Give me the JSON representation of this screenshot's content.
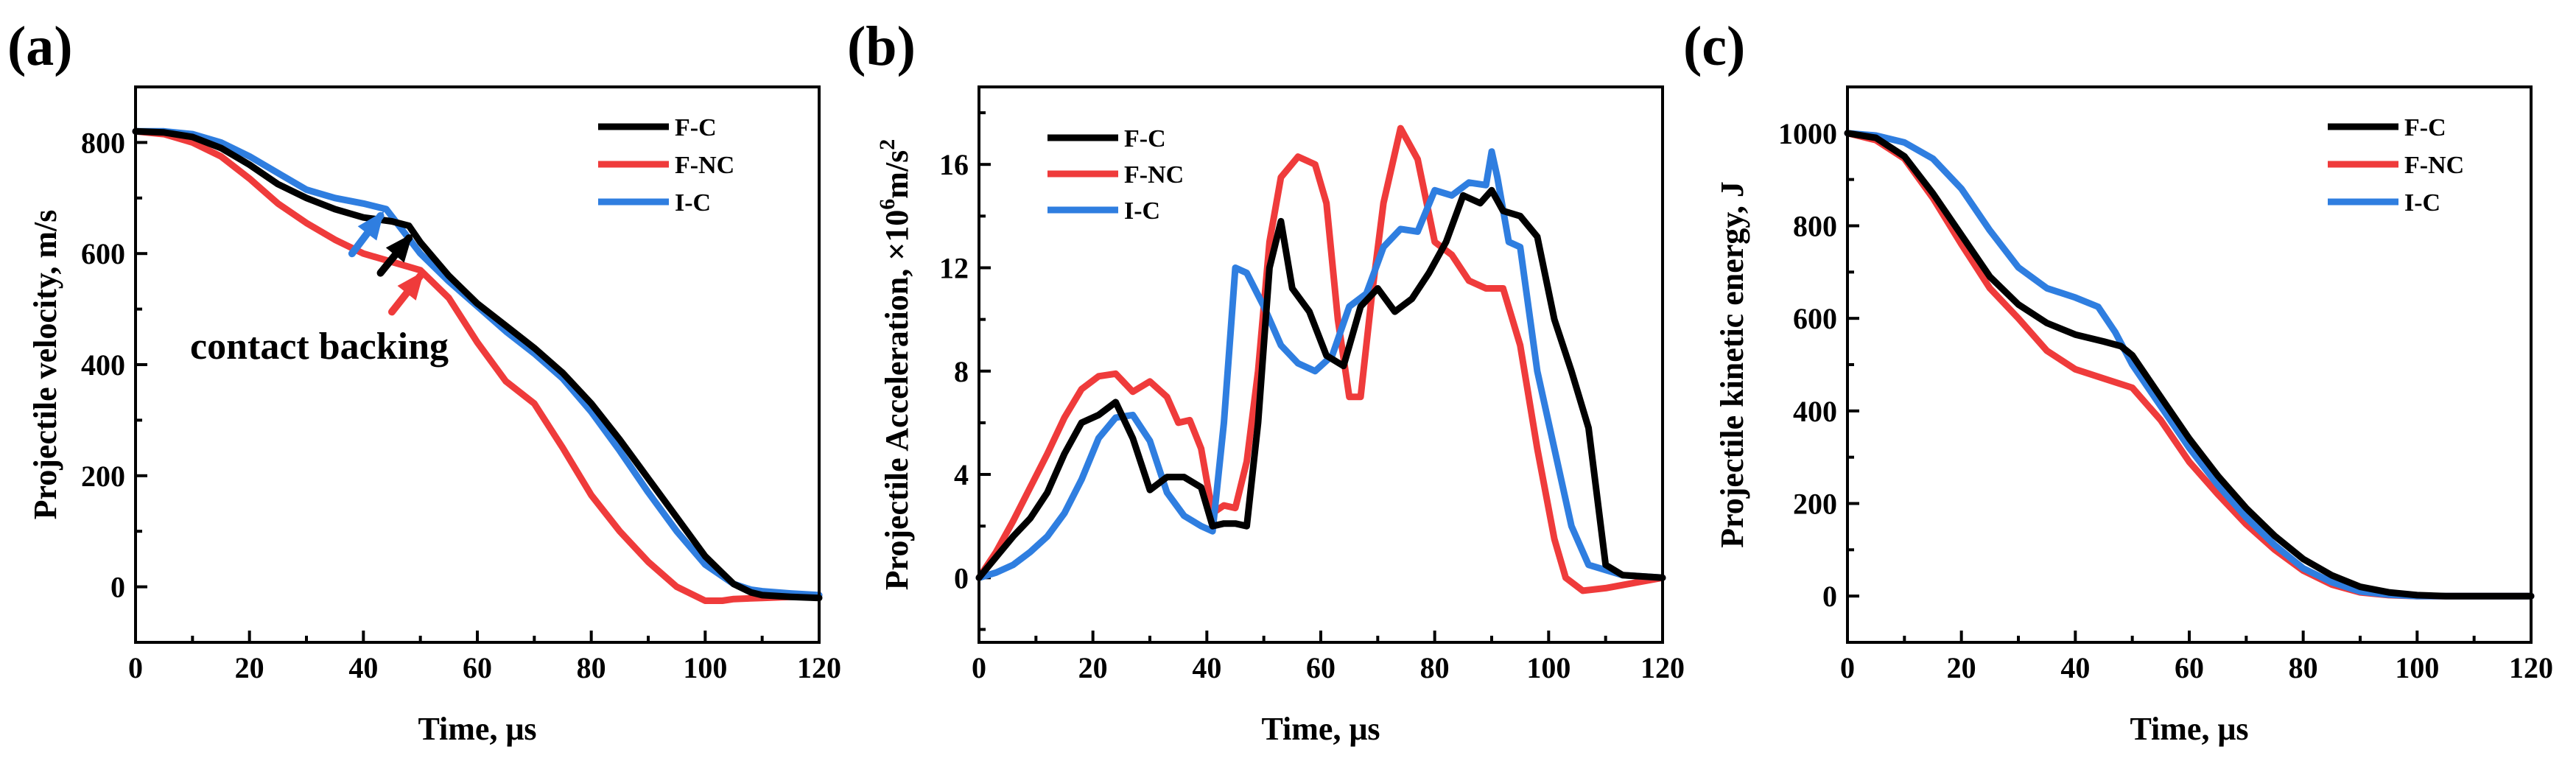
{
  "colors": {
    "F-C": "#000000",
    "F-NC": "#ef3b3b",
    "I-C": "#2f7ee0"
  },
  "chart_data": [
    {
      "id": "a",
      "type": "line",
      "panel_label": "(a)",
      "xlabel": "Time, μs",
      "ylabel": "Projectile velocity, m/s",
      "xlim": [
        0,
        120
      ],
      "ylim": [
        -100,
        900
      ],
      "xticks": [
        0,
        20,
        40,
        60,
        80,
        100,
        120
      ],
      "yticks": [
        0,
        200,
        400,
        600,
        800
      ],
      "legend": [
        "F-C",
        "F-NC",
        "I-C"
      ],
      "annotation": "contact backing",
      "arrows": [
        {
          "series": "I-C",
          "from": [
            38,
            600
          ],
          "to": [
            43,
            668
          ]
        },
        {
          "series": "F-C",
          "from": [
            43,
            565
          ],
          "to": [
            48,
            628
          ]
        },
        {
          "series": "F-NC",
          "from": [
            45,
            495
          ],
          "to": [
            50,
            560
          ]
        }
      ],
      "series": [
        {
          "name": "F-C",
          "x": [
            0,
            5,
            10,
            15,
            20,
            25,
            30,
            35,
            40,
            45,
            48,
            50,
            55,
            60,
            65,
            70,
            75,
            80,
            85,
            90,
            95,
            100,
            103,
            105,
            108,
            110,
            115,
            120
          ],
          "y": [
            820,
            818,
            810,
            790,
            760,
            725,
            700,
            680,
            665,
            658,
            650,
            620,
            560,
            510,
            470,
            430,
            385,
            330,
            265,
            195,
            125,
            55,
            25,
            5,
            -10,
            -15,
            -18,
            -20
          ]
        },
        {
          "name": "F-NC",
          "x": [
            0,
            5,
            10,
            15,
            20,
            25,
            30,
            35,
            40,
            45,
            50,
            55,
            60,
            65,
            70,
            75,
            80,
            85,
            90,
            95,
            100,
            103,
            105,
            110,
            115,
            120
          ],
          "y": [
            820,
            815,
            800,
            775,
            735,
            690,
            655,
            625,
            600,
            585,
            570,
            520,
            440,
            370,
            330,
            250,
            165,
            100,
            45,
            0,
            -25,
            -25,
            -22,
            -20,
            -18,
            -15
          ]
        },
        {
          "name": "I-C",
          "x": [
            0,
            5,
            10,
            15,
            20,
            25,
            30,
            35,
            40,
            44,
            47,
            50,
            55,
            60,
            65,
            70,
            75,
            80,
            85,
            90,
            95,
            100,
            105,
            108,
            110,
            115,
            120
          ],
          "y": [
            820,
            820,
            815,
            800,
            775,
            745,
            715,
            700,
            690,
            680,
            640,
            600,
            550,
            505,
            460,
            420,
            375,
            315,
            245,
            170,
            100,
            40,
            5,
            -5,
            -8,
            -12,
            -15
          ]
        }
      ]
    },
    {
      "id": "b",
      "type": "line",
      "panel_label": "(b)",
      "xlabel": "Time, μs",
      "ylabel_prefix": "Projectile Acceleration, ×10",
      "ylabel_exp": "6",
      "ylabel_unit": "m/s",
      "ylabel_unit_exp": "2",
      "xlim": [
        0,
        120
      ],
      "ylim": [
        -2.5,
        19
      ],
      "xticks": [
        0,
        20,
        40,
        60,
        80,
        100,
        120
      ],
      "yticks": [
        0,
        4,
        8,
        12,
        16
      ],
      "legend": [
        "F-C",
        "F-NC",
        "I-C"
      ],
      "series": [
        {
          "name": "F-C",
          "x": [
            0,
            3,
            6,
            9,
            12,
            15,
            18,
            21,
            24,
            27,
            30,
            33,
            36,
            39,
            41,
            43,
            45,
            47,
            49,
            51,
            53,
            55,
            58,
            61,
            64,
            67,
            70,
            73,
            76,
            79,
            82,
            85,
            88,
            90,
            92,
            95,
            98,
            101,
            104,
            107,
            110,
            113,
            120
          ],
          "y": [
            0,
            0.8,
            1.6,
            2.3,
            3.3,
            4.8,
            6.0,
            6.3,
            6.8,
            5.4,
            3.4,
            3.9,
            3.9,
            3.5,
            2.0,
            2.1,
            2.1,
            2.0,
            6.0,
            12.0,
            13.8,
            11.2,
            10.3,
            8.6,
            8.2,
            10.5,
            11.2,
            10.3,
            10.8,
            11.8,
            13.0,
            14.8,
            14.5,
            15.0,
            14.2,
            14.0,
            13.2,
            10.0,
            8.0,
            5.8,
            0.5,
            0.1,
            0
          ]
        },
        {
          "name": "F-NC",
          "x": [
            0,
            3,
            6,
            9,
            12,
            15,
            18,
            21,
            24,
            27,
            30,
            33,
            35,
            37,
            39,
            41,
            43,
            45,
            47,
            49,
            51,
            53,
            56,
            59,
            61,
            63,
            65,
            67,
            69,
            71,
            74,
            77,
            80,
            83,
            86,
            89,
            92,
            95,
            98,
            101,
            103,
            106,
            110,
            115,
            120
          ],
          "y": [
            0,
            1.0,
            2.2,
            3.5,
            4.8,
            6.2,
            7.3,
            7.8,
            7.9,
            7.2,
            7.6,
            7.0,
            6.0,
            6.1,
            5.0,
            2.5,
            2.8,
            2.7,
            4.5,
            8.0,
            13.0,
            15.5,
            16.3,
            16.0,
            14.5,
            10.0,
            7.0,
            7.0,
            11.0,
            14.5,
            17.4,
            16.2,
            13.0,
            12.5,
            11.5,
            11.2,
            11.2,
            9.0,
            5.0,
            1.5,
            0,
            -0.5,
            -0.4,
            -0.2,
            0
          ]
        },
        {
          "name": "I-C",
          "x": [
            0,
            3,
            6,
            9,
            12,
            15,
            18,
            21,
            24,
            27,
            30,
            33,
            36,
            39,
            41,
            43,
            45,
            47,
            50,
            53,
            56,
            59,
            62,
            65,
            68,
            71,
            74,
            77,
            80,
            83,
            86,
            89,
            90,
            91,
            93,
            95,
            98,
            101,
            104,
            107,
            110,
            113,
            120
          ],
          "y": [
            0,
            0.2,
            0.5,
            1.0,
            1.6,
            2.5,
            3.8,
            5.4,
            6.2,
            6.3,
            5.3,
            3.3,
            2.4,
            2.0,
            1.8,
            6.0,
            12.0,
            11.8,
            10.5,
            9.0,
            8.3,
            8.0,
            8.6,
            10.5,
            11.0,
            12.8,
            13.5,
            13.4,
            15.0,
            14.8,
            15.3,
            15.2,
            16.5,
            15.5,
            13.0,
            12.8,
            8.0,
            5.0,
            2.0,
            0.5,
            0.3,
            0.1,
            0
          ]
        }
      ]
    },
    {
      "id": "c",
      "type": "line",
      "panel_label": "(c)",
      "xlabel": "Time, μs",
      "ylabel": "Projectile kinetic energy,  J",
      "xlim": [
        0,
        120
      ],
      "ylim": [
        -100,
        1100
      ],
      "xticks": [
        0,
        20,
        40,
        60,
        80,
        100,
        120
      ],
      "yticks": [
        0,
        200,
        400,
        600,
        800,
        1000
      ],
      "legend": [
        "F-C",
        "F-NC",
        "I-C"
      ],
      "series": [
        {
          "name": "F-C",
          "x": [
            0,
            5,
            10,
            15,
            20,
            25,
            30,
            35,
            40,
            45,
            48,
            50,
            55,
            60,
            65,
            70,
            75,
            80,
            85,
            90,
            95,
            100,
            105,
            110,
            120
          ],
          "y": [
            1000,
            990,
            950,
            870,
            780,
            690,
            630,
            590,
            565,
            550,
            540,
            520,
            430,
            340,
            260,
            190,
            130,
            80,
            45,
            20,
            8,
            2,
            0,
            0,
            0
          ]
        },
        {
          "name": "F-NC",
          "x": [
            0,
            5,
            10,
            15,
            20,
            25,
            30,
            35,
            40,
            45,
            50,
            55,
            60,
            65,
            70,
            75,
            80,
            85,
            90,
            95,
            100,
            110,
            120
          ],
          "y": [
            1000,
            985,
            945,
            860,
            760,
            665,
            600,
            530,
            490,
            470,
            450,
            380,
            290,
            220,
            155,
            100,
            55,
            25,
            8,
            2,
            0,
            0,
            0
          ]
        },
        {
          "name": "I-C",
          "x": [
            0,
            5,
            10,
            15,
            20,
            25,
            30,
            35,
            40,
            44,
            47,
            50,
            55,
            60,
            65,
            70,
            75,
            80,
            85,
            90,
            95,
            100,
            110,
            120
          ],
          "y": [
            1000,
            995,
            980,
            945,
            880,
            790,
            710,
            665,
            645,
            625,
            570,
            500,
            410,
            320,
            240,
            170,
            110,
            60,
            30,
            10,
            3,
            0,
            0,
            0
          ]
        }
      ]
    }
  ]
}
